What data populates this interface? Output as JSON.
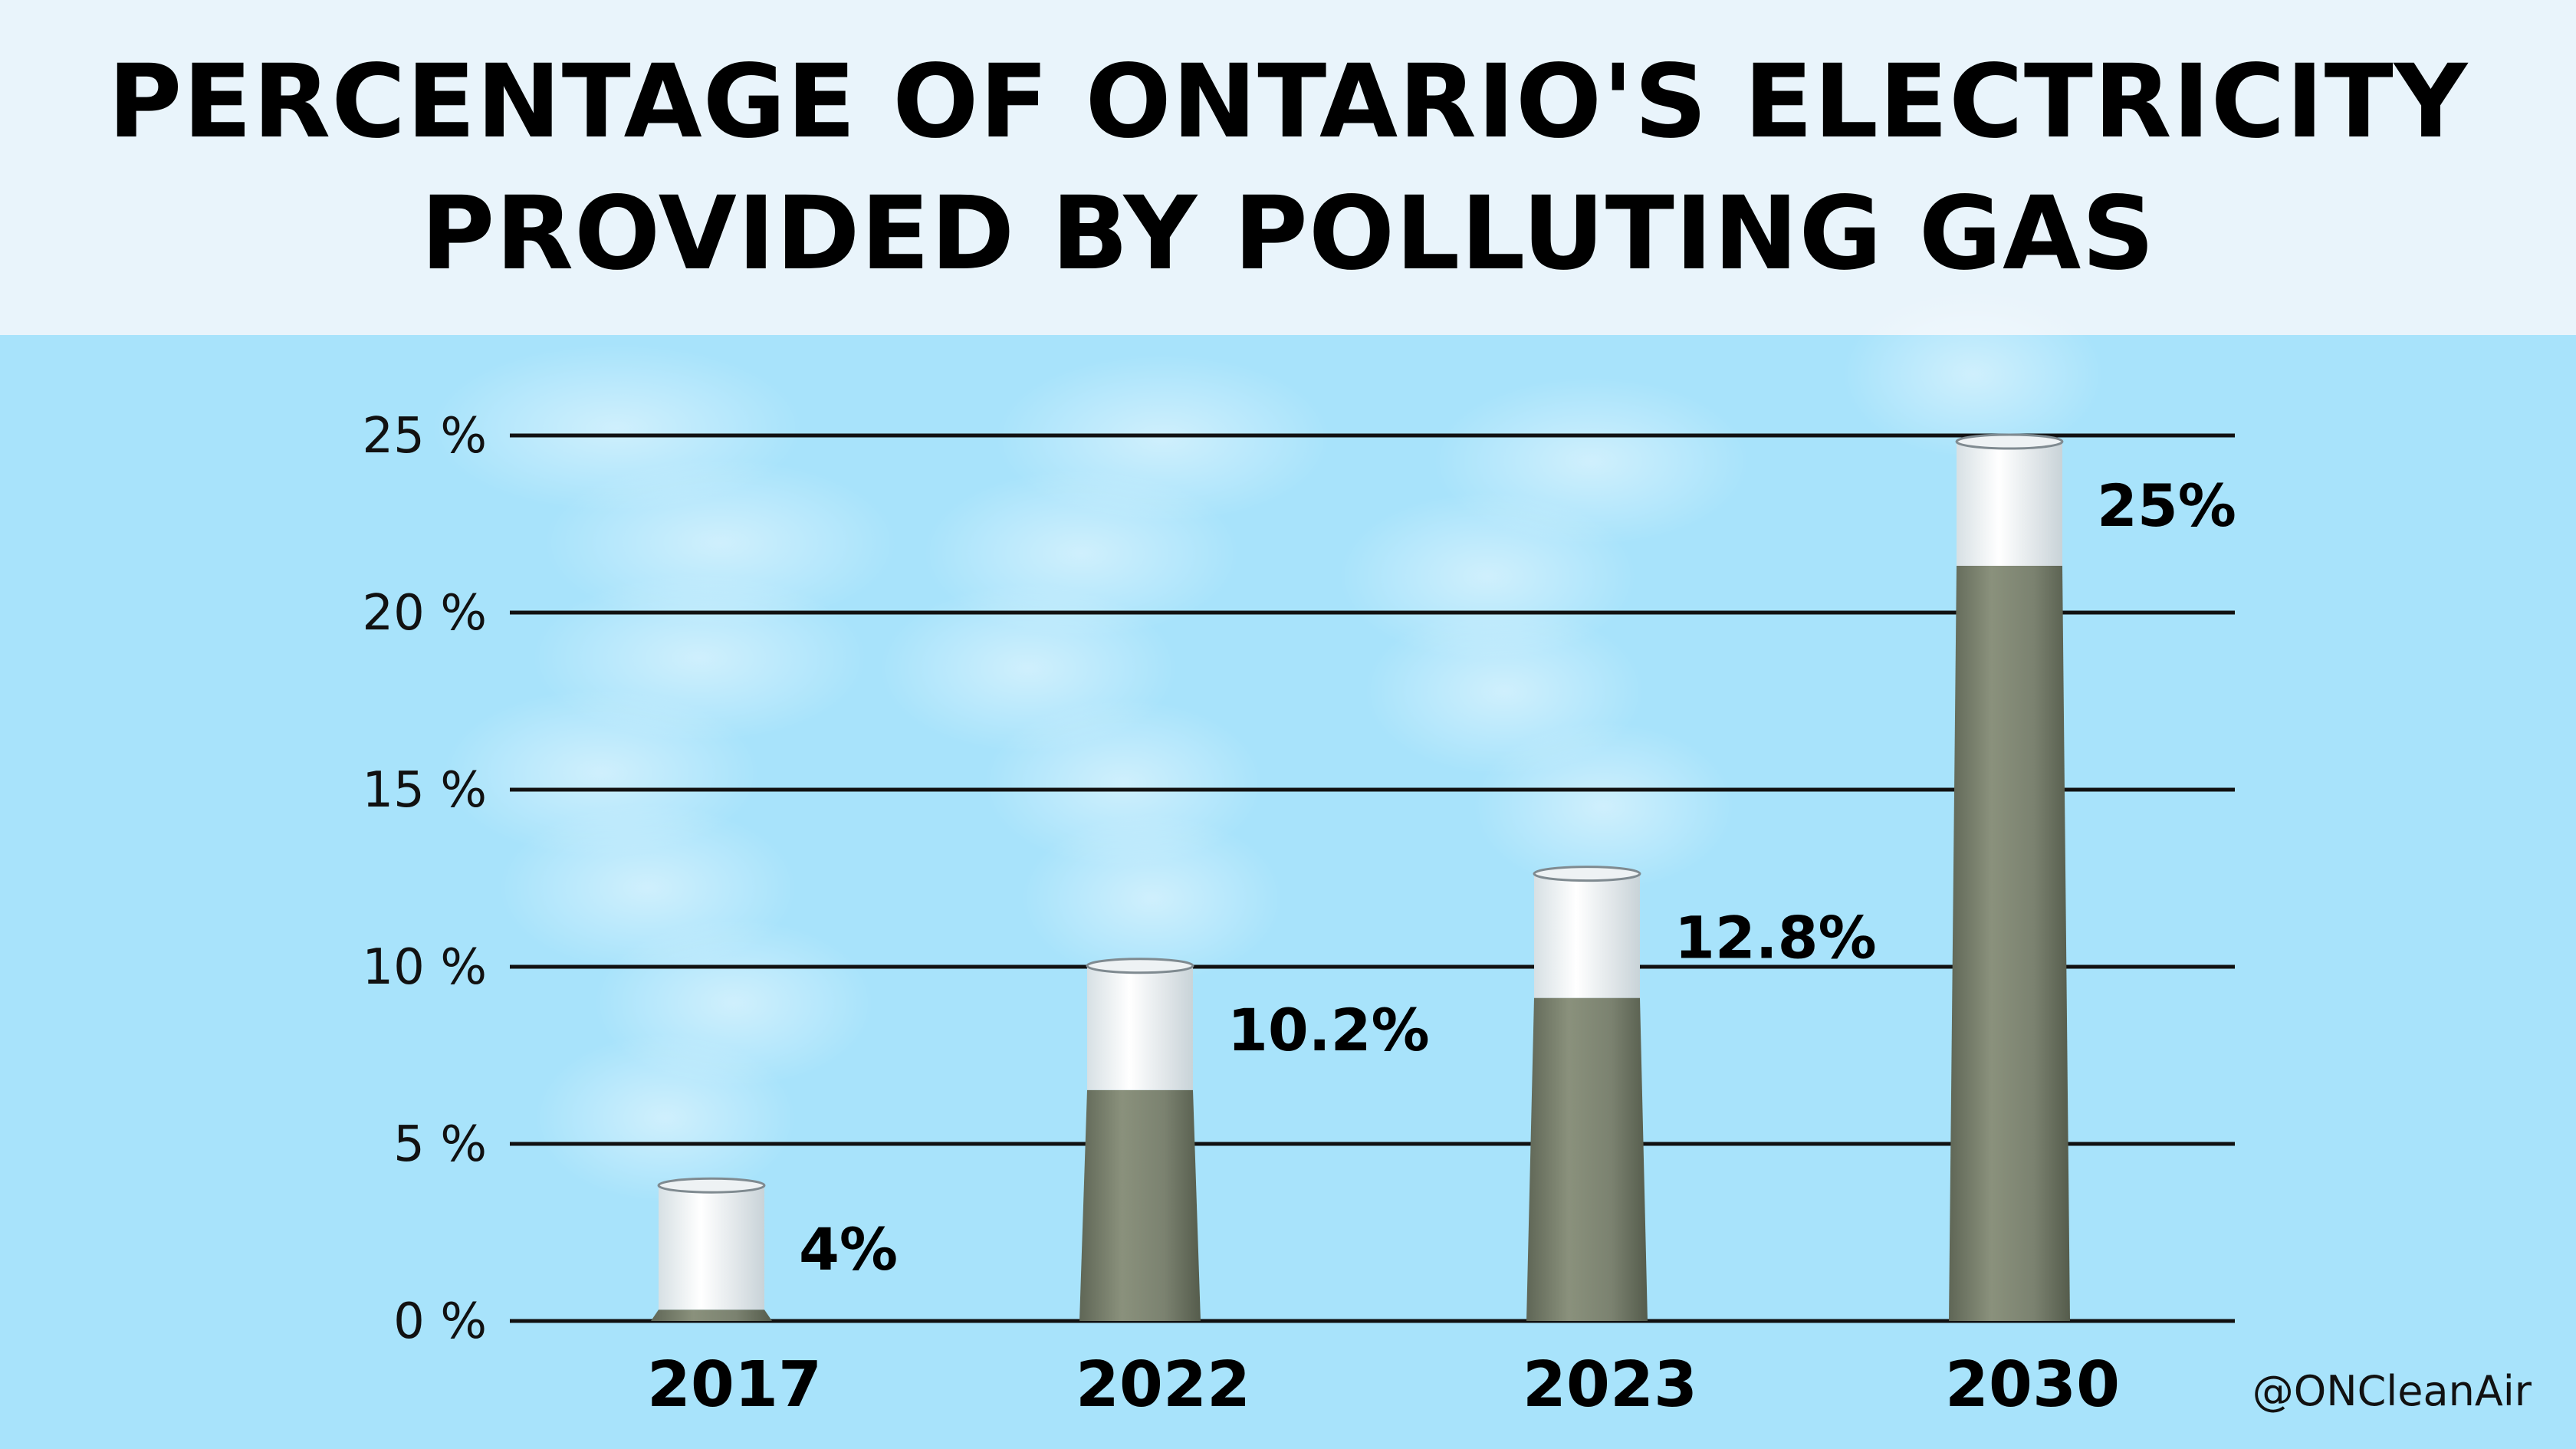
{
  "title_lines": [
    "PERCENTAGE OF ONTARIO'S ELECTRICITY",
    "PROVIDED BY POLLUTING GAS"
  ],
  "handle": "@ONCleanAir",
  "chart_data": {
    "type": "bar",
    "title": "PERCENTAGE OF ONTARIO'S ELECTRICITY PROVIDED BY POLLUTING GAS",
    "categories": [
      "2017",
      "2022",
      "2023",
      "2030"
    ],
    "values": [
      4,
      10.2,
      12.8,
      25
    ],
    "data_labels": [
      "4%",
      "10.2%",
      "12.8%",
      "25%"
    ],
    "y_ticks": [
      0,
      5,
      10,
      15,
      20,
      25
    ],
    "y_tick_labels": [
      "0 %",
      "5 %",
      "10 %",
      "15 %",
      "20 %",
      "25 %"
    ],
    "ylim": [
      0,
      25
    ],
    "grid": true,
    "xlabel": "",
    "ylabel": "",
    "bar_style": "smokestack",
    "colors": {
      "background": "#a8e3fb",
      "header": "#e9f4fb",
      "stack_body": "#7d8470",
      "stack_cap": "#eef3f5",
      "gridline": "#111111",
      "text": "#000000"
    }
  }
}
